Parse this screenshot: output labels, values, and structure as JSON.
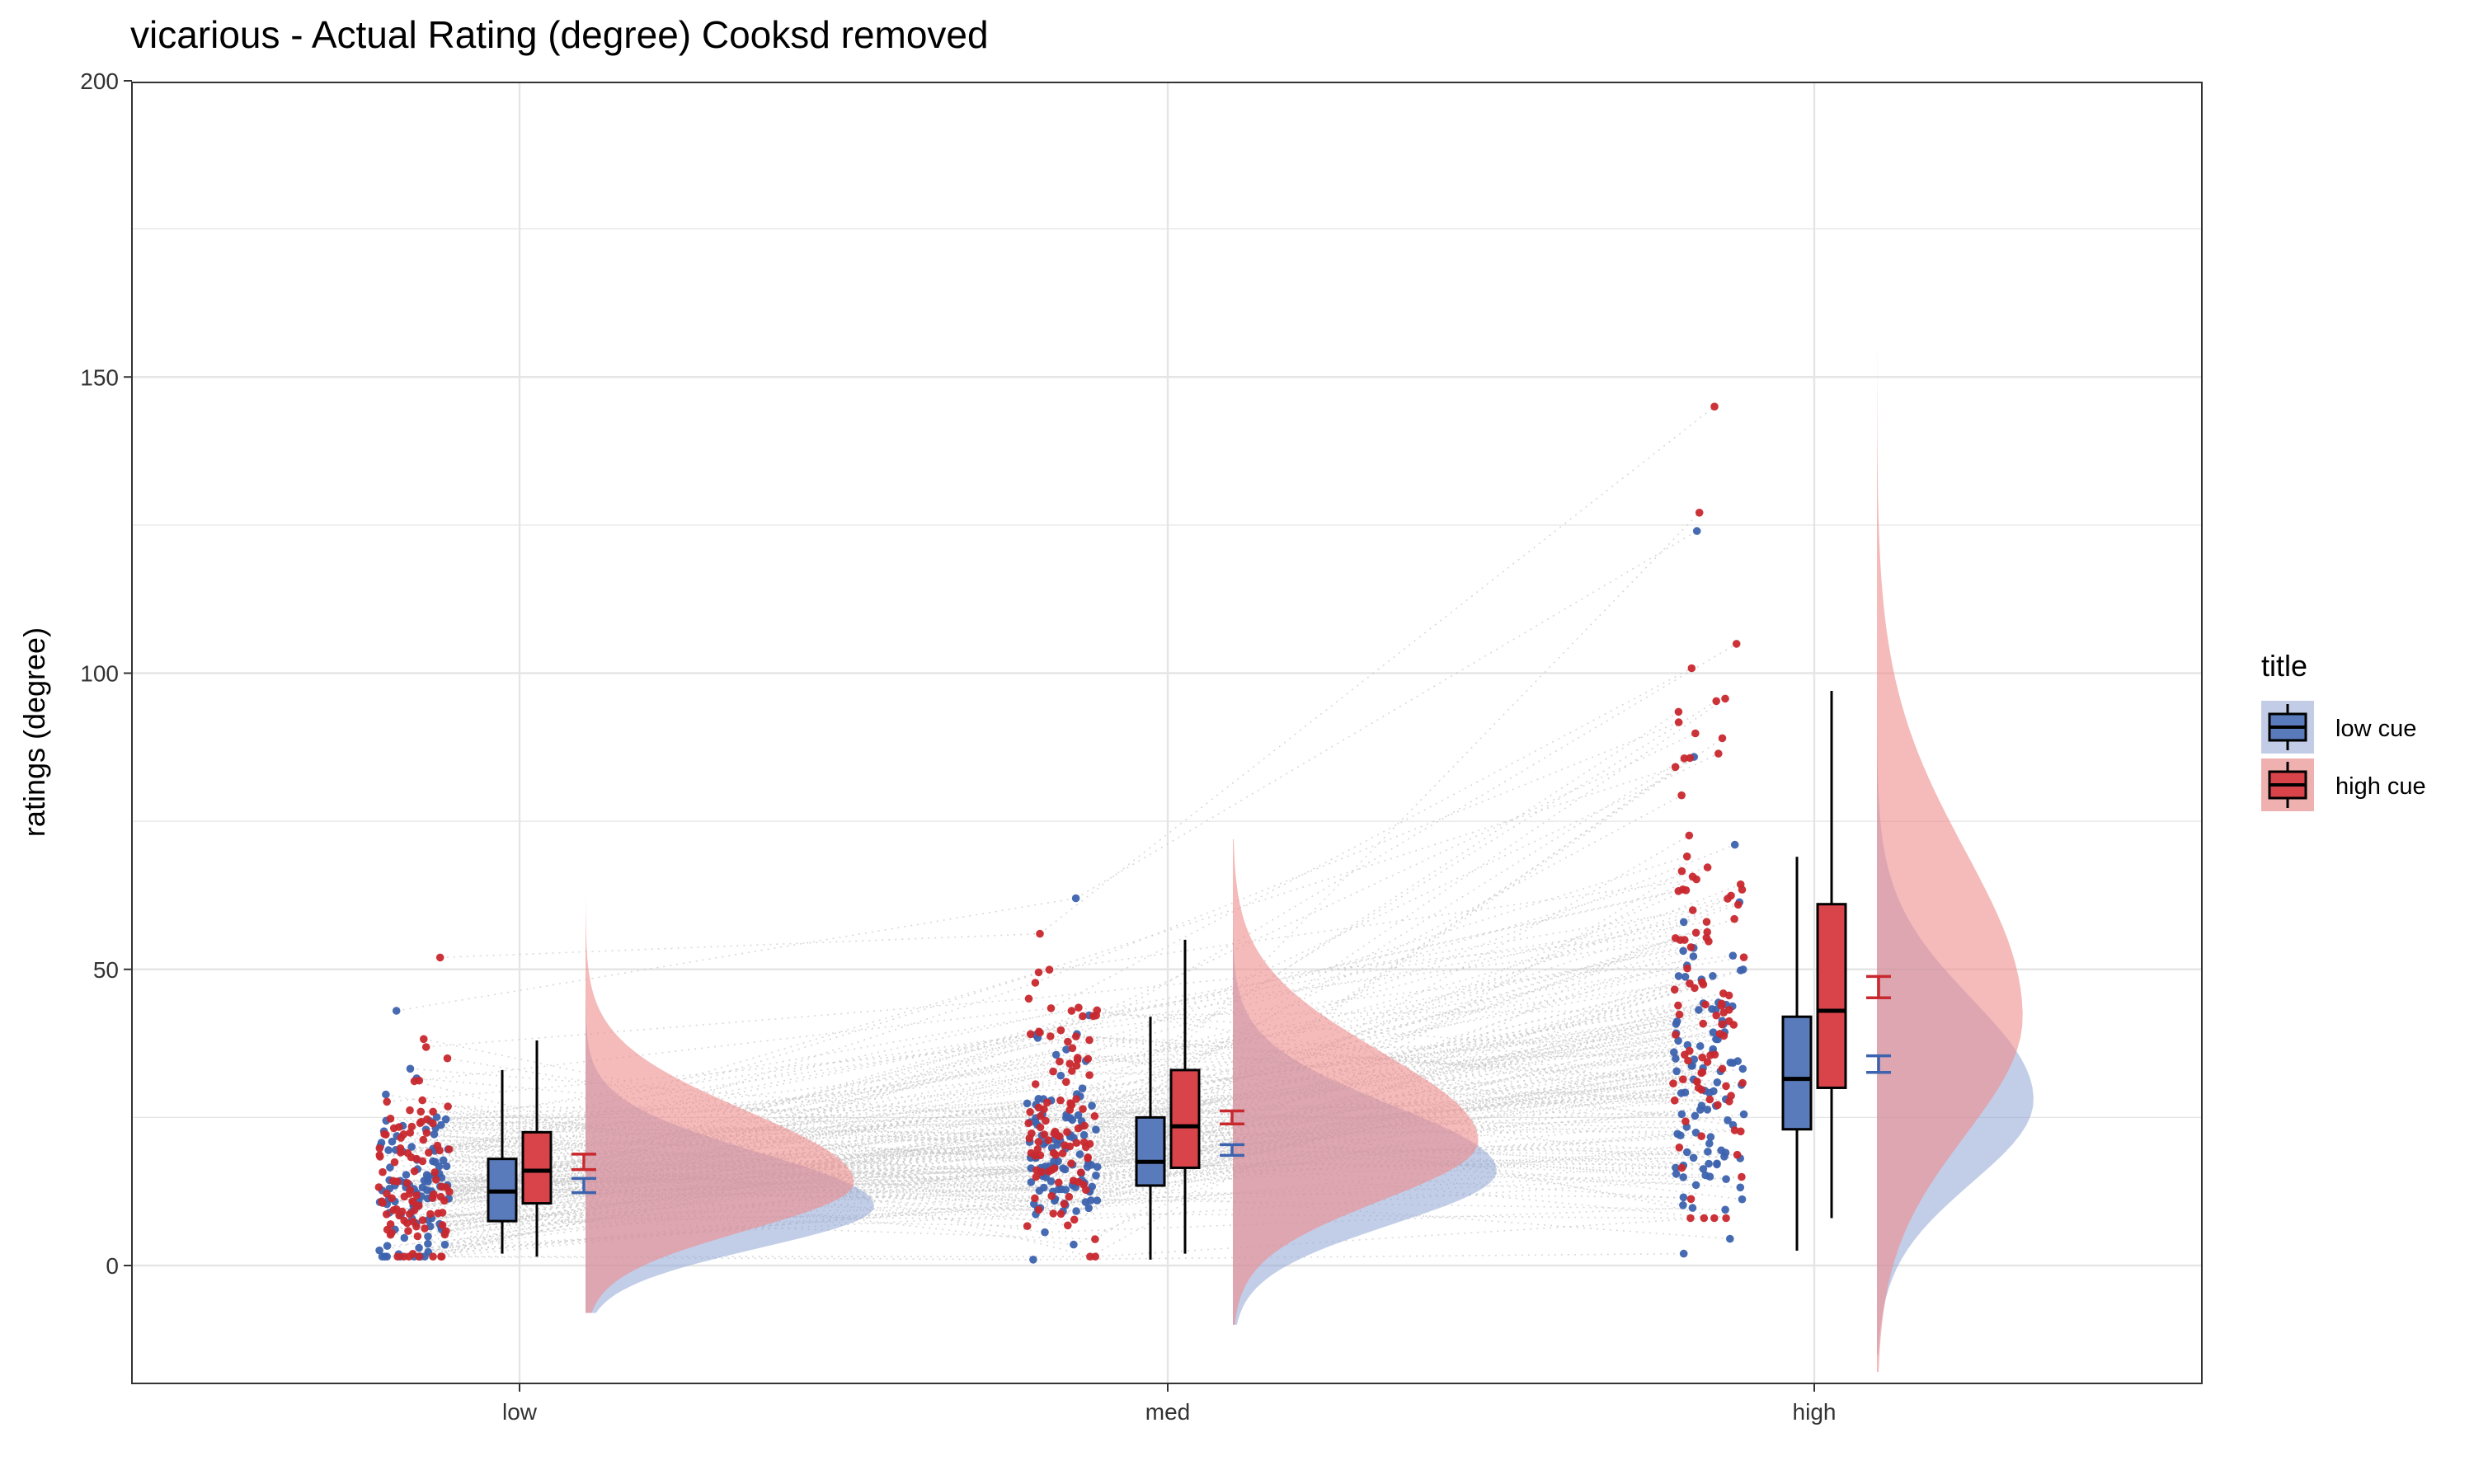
{
  "chart_data": {
    "type": "raincloud",
    "title": "vicarious  - Actual Rating (degree) Cooksd removed",
    "xlabel": "",
    "ylabel": "ratings (degree)",
    "ylim": [
      -20,
      200
    ],
    "y_ticks": [
      0,
      50,
      100,
      150,
      200
    ],
    "categories": [
      "low",
      "med",
      "high"
    ],
    "grid": true,
    "legend": {
      "title": "title",
      "position": "right",
      "entries": [
        {
          "label": "low cue",
          "fill": "#4A6FB5",
          "box_fill": "#5A7BBB"
        },
        {
          "label": "high cue",
          "fill": "#D1242F",
          "box_fill": "#D9444A"
        }
      ]
    },
    "series": [
      {
        "name": "low cue",
        "color": "#3D63AE",
        "box": [
          {
            "category": "low",
            "whisker_low": 2,
            "q1": 7.5,
            "median": 12.5,
            "q3": 18,
            "whisker_high": 33
          },
          {
            "category": "med",
            "whisker_low": 1,
            "q1": 13.5,
            "median": 17.5,
            "q3": 25,
            "whisker_high": 42
          },
          {
            "category": "high",
            "whisker_low": 2.5,
            "q1": 23,
            "median": 31.5,
            "q3": 42,
            "whisker_high": 69
          }
        ],
        "mean_se": [
          {
            "category": "low",
            "mean": 13.5,
            "se": 1.2
          },
          {
            "category": "med",
            "mean": 19.5,
            "se": 0.9
          },
          {
            "category": "high",
            "mean": 34,
            "se": 1.4
          }
        ],
        "density": [
          {
            "category": "low",
            "mode": 10,
            "lo": -8,
            "hi": 50,
            "sd_lo": 7,
            "sd_hi": 9
          },
          {
            "category": "med",
            "mode": 16,
            "lo": -10,
            "hi": 60,
            "sd_lo": 9,
            "sd_hi": 11
          },
          {
            "category": "high",
            "mode": 28,
            "lo": -15,
            "hi": 130,
            "sd_lo": 14,
            "sd_hi": 17
          }
        ],
        "point_range": [
          {
            "category": "low",
            "min": 1.5,
            "max": 43
          },
          {
            "category": "med",
            "min": 1,
            "max": 62
          },
          {
            "category": "high",
            "min": 2,
            "max": 124
          }
        ]
      },
      {
        "name": "high cue",
        "color": "#C8282E",
        "box": [
          {
            "category": "low",
            "whisker_low": 1.5,
            "q1": 10.5,
            "median": 16,
            "q3": 22.5,
            "whisker_high": 38
          },
          {
            "category": "med",
            "whisker_low": 2,
            "q1": 16.5,
            "median": 23.5,
            "q3": 33,
            "whisker_high": 55
          },
          {
            "category": "high",
            "whisker_low": 8,
            "q1": 30,
            "median": 43,
            "q3": 61,
            "whisker_high": 97
          }
        ],
        "mean_se": [
          {
            "category": "low",
            "mean": 17.5,
            "se": 1.3
          },
          {
            "category": "med",
            "mean": 25,
            "se": 1.1
          },
          {
            "category": "high",
            "mean": 47,
            "se": 1.8
          }
        ],
        "density": [
          {
            "category": "low",
            "mode": 14,
            "lo": -8,
            "hi": 62,
            "sd_lo": 8,
            "sd_hi": 12
          },
          {
            "category": "med",
            "mode": 21,
            "lo": -10,
            "hi": 72,
            "sd_lo": 10,
            "sd_hi": 15
          },
          {
            "category": "high",
            "mode": 42,
            "lo": -18,
            "hi": 170,
            "sd_lo": 20,
            "sd_hi": 28
          }
        ],
        "point_range": [
          {
            "category": "low",
            "min": 1.5,
            "max": 52
          },
          {
            "category": "med",
            "min": 1.5,
            "max": 56
          },
          {
            "category": "high",
            "min": 8,
            "max": 145
          }
        ]
      }
    ]
  }
}
